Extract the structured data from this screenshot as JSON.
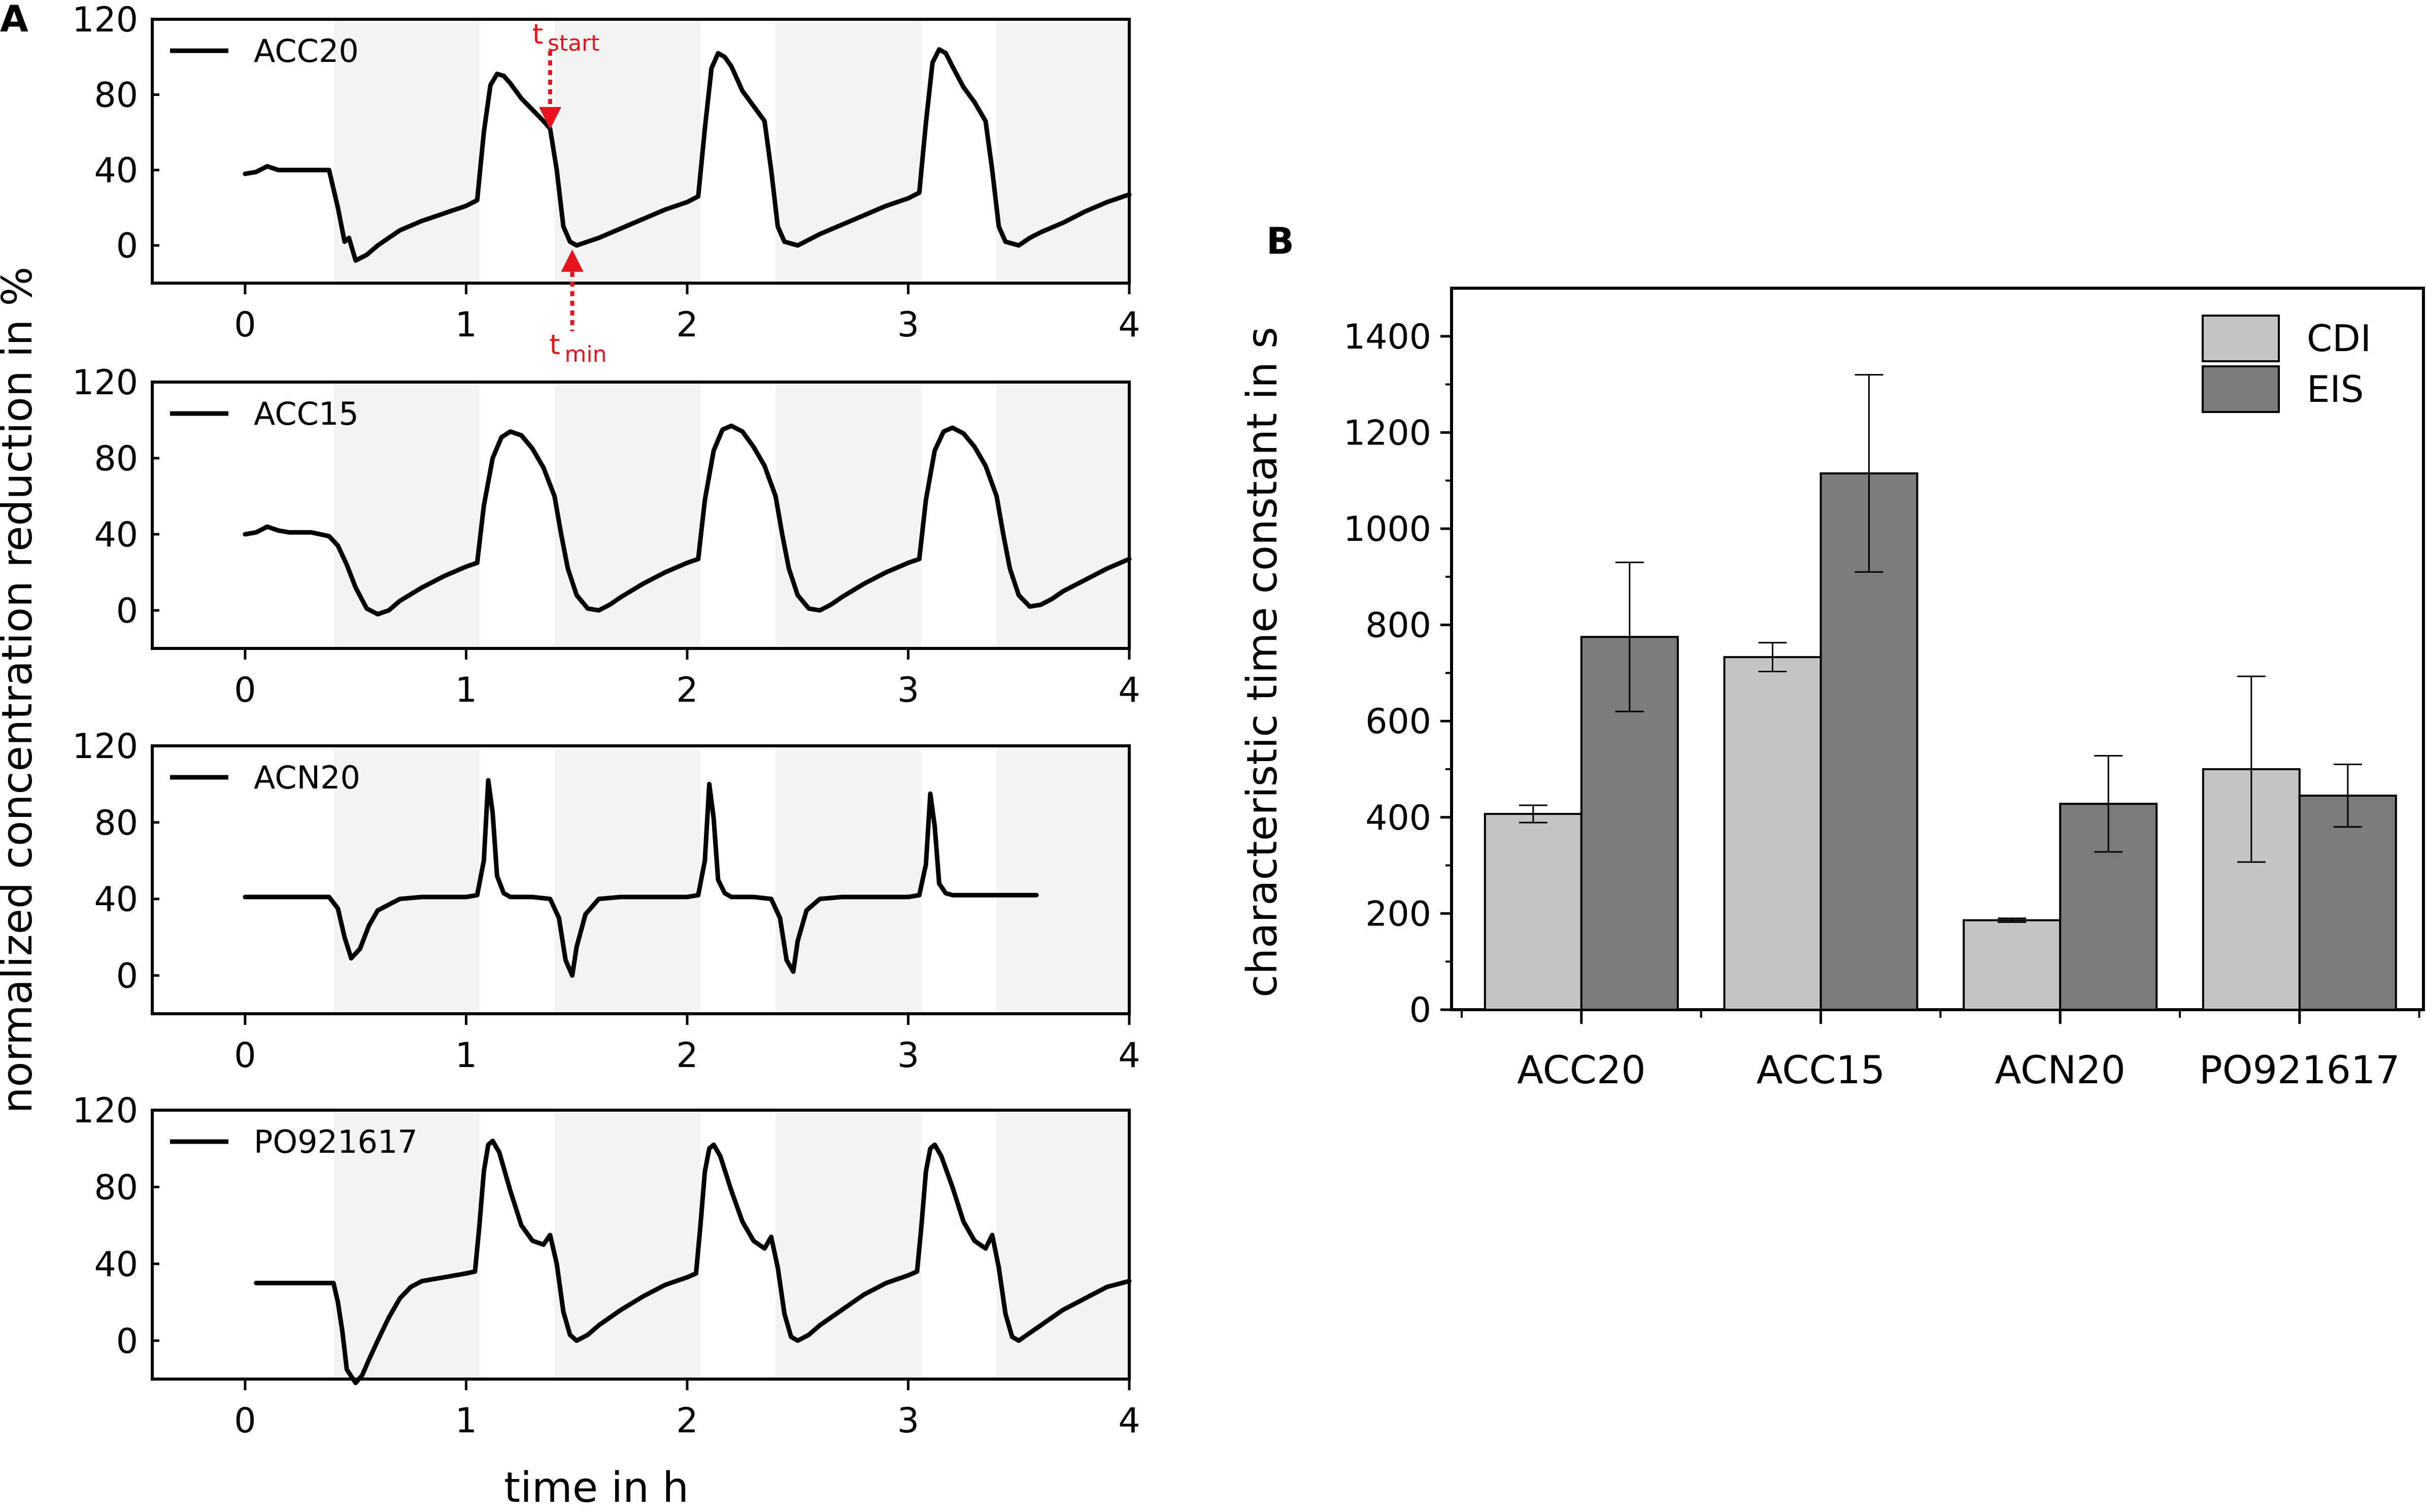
{
  "figure": {
    "panel_a_letter": "A",
    "panel_b_letter": "B"
  },
  "colors": {
    "line": "#000000",
    "shade": "#f3f3f3",
    "annotation": "#e8141c",
    "cdi": "#c4c4c4",
    "eis": "#7b7b7b"
  },
  "chart_data": [
    {
      "type": "line",
      "panel": "A",
      "xlabel": "time in h",
      "ylabel": "normalized concentration reduction in %",
      "xlim": [
        -0.42,
        4.0
      ],
      "ylim": [
        -20,
        120
      ],
      "xticks": [
        "0",
        "1",
        "2",
        "3",
        "4"
      ],
      "yticks": [
        "0",
        "40",
        "80",
        "120"
      ],
      "shaded_intervals": [
        [
          0.4,
          1.06
        ],
        [
          1.4,
          2.06
        ],
        [
          2.4,
          3.06
        ],
        [
          3.4,
          4.0
        ]
      ],
      "subplots": [
        {
          "name": "ACC20",
          "legend": "ACC20",
          "annotations": {
            "t_start": {
              "t": "t",
              "sub": "start",
              "x": 1.38,
              "y": 60
            },
            "t_min": {
              "t": "t",
              "sub": "min",
              "x": 1.48,
              "y": 0
            }
          },
          "x": [
            0.0,
            0.05,
            0.1,
            0.15,
            0.2,
            0.3,
            0.38,
            0.42,
            0.45,
            0.47,
            0.5,
            0.55,
            0.6,
            0.7,
            0.8,
            0.9,
            1.0,
            1.05,
            1.08,
            1.11,
            1.14,
            1.17,
            1.2,
            1.25,
            1.3,
            1.35,
            1.38,
            1.41,
            1.44,
            1.47,
            1.5,
            1.55,
            1.6,
            1.7,
            1.8,
            1.9,
            2.0,
            2.05,
            2.08,
            2.11,
            2.14,
            2.17,
            2.2,
            2.25,
            2.3,
            2.35,
            2.38,
            2.41,
            2.44,
            2.47,
            2.5,
            2.55,
            2.6,
            2.7,
            2.8,
            2.9,
            3.0,
            3.05,
            3.08,
            3.11,
            3.14,
            3.17,
            3.2,
            3.25,
            3.3,
            3.35,
            3.38,
            3.41,
            3.44,
            3.47,
            3.5,
            3.55,
            3.6,
            3.7,
            3.8,
            3.9,
            4.0
          ],
          "y": [
            38,
            39,
            42,
            40,
            40,
            40,
            40,
            20,
            2,
            4,
            -8,
            -5,
            0,
            8,
            13,
            17,
            21,
            24,
            60,
            85,
            91,
            90,
            86,
            78,
            72,
            66,
            62,
            40,
            10,
            2,
            0,
            2,
            4,
            9,
            14,
            19,
            23,
            26,
            62,
            94,
            102,
            100,
            95,
            82,
            74,
            66,
            40,
            10,
            2,
            1,
            0,
            3,
            6,
            11,
            16,
            21,
            25,
            28,
            65,
            97,
            104,
            102,
            95,
            84,
            76,
            66,
            40,
            10,
            2,
            1,
            0,
            4,
            7,
            12,
            18,
            23,
            27
          ]
        },
        {
          "name": "ACC15",
          "legend": "ACC15",
          "x": [
            0.0,
            0.05,
            0.1,
            0.15,
            0.2,
            0.3,
            0.38,
            0.42,
            0.46,
            0.5,
            0.55,
            0.6,
            0.65,
            0.7,
            0.8,
            0.9,
            1.0,
            1.05,
            1.08,
            1.12,
            1.16,
            1.2,
            1.25,
            1.3,
            1.35,
            1.4,
            1.43,
            1.46,
            1.5,
            1.55,
            1.6,
            1.65,
            1.7,
            1.8,
            1.9,
            2.0,
            2.05,
            2.08,
            2.12,
            2.16,
            2.2,
            2.25,
            2.3,
            2.35,
            2.4,
            2.43,
            2.46,
            2.5,
            2.55,
            2.6,
            2.65,
            2.7,
            2.8,
            2.9,
            3.0,
            3.05,
            3.08,
            3.12,
            3.16,
            3.2,
            3.25,
            3.3,
            3.35,
            3.4,
            3.43,
            3.46,
            3.5,
            3.55,
            3.6,
            3.65,
            3.7,
            3.8,
            3.9,
            4.0
          ],
          "y": [
            40,
            41,
            44,
            42,
            41,
            41,
            39,
            34,
            24,
            12,
            1,
            -2,
            0,
            5,
            12,
            18,
            23,
            25,
            55,
            80,
            91,
            94,
            92,
            85,
            75,
            60,
            40,
            22,
            8,
            1,
            0,
            3,
            7,
            14,
            20,
            25,
            27,
            58,
            84,
            95,
            97,
            94,
            86,
            76,
            60,
            40,
            22,
            8,
            1,
            0,
            3,
            7,
            14,
            20,
            25,
            27,
            58,
            84,
            94,
            96,
            93,
            86,
            76,
            60,
            40,
            22,
            8,
            2,
            3,
            6,
            10,
            16,
            22,
            27
          ]
        },
        {
          "name": "ACN20",
          "legend": "ACN20",
          "x": [
            0.0,
            0.1,
            0.2,
            0.3,
            0.38,
            0.42,
            0.45,
            0.48,
            0.52,
            0.56,
            0.6,
            0.7,
            0.8,
            0.9,
            1.0,
            1.05,
            1.08,
            1.1,
            1.12,
            1.14,
            1.17,
            1.2,
            1.3,
            1.38,
            1.42,
            1.45,
            1.48,
            1.5,
            1.54,
            1.6,
            1.7,
            1.8,
            1.9,
            2.0,
            2.05,
            2.08,
            2.1,
            2.12,
            2.14,
            2.17,
            2.2,
            2.3,
            2.38,
            2.42,
            2.45,
            2.48,
            2.5,
            2.54,
            2.6,
            2.7,
            2.8,
            2.9,
            3.0,
            3.05,
            3.08,
            3.1,
            3.12,
            3.14,
            3.17,
            3.2,
            3.3,
            3.4,
            3.5,
            3.58
          ],
          "y": [
            41,
            41,
            41,
            41,
            41,
            35,
            20,
            9,
            14,
            26,
            34,
            40,
            41,
            41,
            41,
            42,
            60,
            102,
            85,
            52,
            43,
            41,
            41,
            40,
            30,
            8,
            0,
            15,
            32,
            40,
            41,
            41,
            41,
            41,
            42,
            60,
            100,
            82,
            50,
            43,
            41,
            41,
            40,
            30,
            8,
            2,
            18,
            34,
            40,
            41,
            41,
            41,
            41,
            42,
            58,
            95,
            78,
            48,
            43,
            42,
            42,
            42,
            42,
            42
          ]
        },
        {
          "name": "PO921617",
          "legend": "PO921617",
          "x": [
            0.05,
            0.1,
            0.2,
            0.3,
            0.4,
            0.42,
            0.44,
            0.46,
            0.5,
            0.53,
            0.56,
            0.6,
            0.65,
            0.7,
            0.75,
            0.8,
            0.9,
            1.0,
            1.04,
            1.06,
            1.08,
            1.1,
            1.12,
            1.15,
            1.2,
            1.25,
            1.3,
            1.35,
            1.38,
            1.41,
            1.44,
            1.47,
            1.5,
            1.55,
            1.6,
            1.7,
            1.8,
            1.9,
            2.0,
            2.04,
            2.06,
            2.08,
            2.1,
            2.12,
            2.15,
            2.2,
            2.25,
            2.3,
            2.35,
            2.38,
            2.41,
            2.44,
            2.47,
            2.5,
            2.55,
            2.6,
            2.7,
            2.8,
            2.9,
            3.0,
            3.04,
            3.06,
            3.08,
            3.1,
            3.12,
            3.15,
            3.2,
            3.25,
            3.3,
            3.35,
            3.38,
            3.41,
            3.44,
            3.47,
            3.5,
            3.55,
            3.6,
            3.7,
            3.8,
            3.9,
            4.0
          ],
          "y": [
            30,
            30,
            30,
            30,
            30,
            20,
            5,
            -15,
            -22,
            -18,
            -10,
            0,
            12,
            22,
            28,
            31,
            33,
            35,
            36,
            60,
            88,
            102,
            104,
            98,
            78,
            60,
            52,
            50,
            55,
            40,
            15,
            3,
            0,
            3,
            8,
            16,
            23,
            29,
            33,
            35,
            60,
            88,
            100,
            102,
            96,
            78,
            62,
            52,
            48,
            54,
            38,
            14,
            2,
            0,
            3,
            8,
            16,
            24,
            30,
            34,
            36,
            60,
            88,
            100,
            102,
            96,
            80,
            62,
            52,
            48,
            55,
            38,
            14,
            2,
            0,
            4,
            8,
            16,
            22,
            28,
            31
          ]
        }
      ]
    },
    {
      "type": "bar",
      "panel": "B",
      "xlabel": "",
      "ylabel": "characteristic time constant in s",
      "ylim": [
        0,
        1500
      ],
      "yticks": [
        "0",
        "200",
        "400",
        "600",
        "800",
        "1000",
        "1200",
        "1400"
      ],
      "categories": [
        "ACC20",
        "ACC15",
        "ACN20",
        "PO921617"
      ],
      "legend_position": "top-right",
      "series": [
        {
          "name": "CDI",
          "values": [
            407,
            733,
            186,
            500
          ],
          "errors": [
            18,
            30,
            4,
            193
          ]
        },
        {
          "name": "EIS",
          "values": [
            775,
            1115,
            428,
            445
          ],
          "errors": [
            155,
            205,
            100,
            65
          ]
        }
      ]
    }
  ]
}
